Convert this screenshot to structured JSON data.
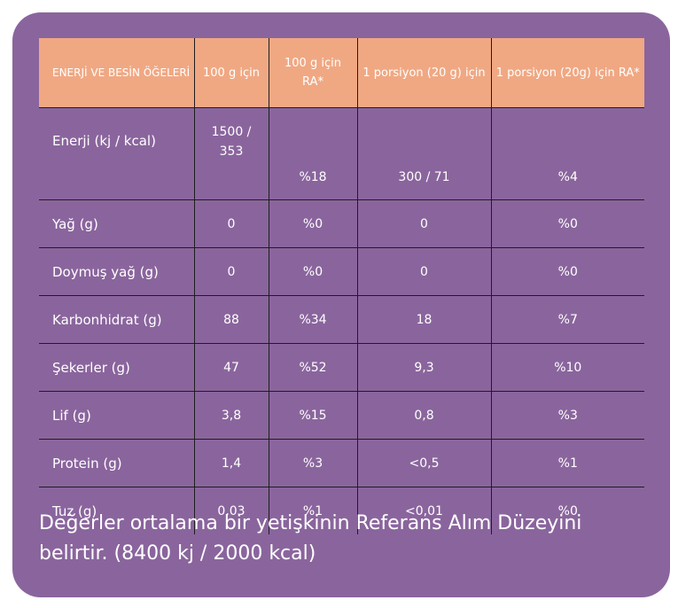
{
  "table": {
    "headers": [
      "ENERJİ VE BESİN ÖĞELERİ",
      "100 g için",
      "100 g için RA*",
      "1 porsiyon (20 g) için",
      "1 porsiyon (20g) için RA*"
    ],
    "rows": [
      [
        "Enerji (kj / kcal)",
        "1500 / 353",
        "%18",
        "300 / 71",
        "%4"
      ],
      [
        "Yağ (g)",
        "0",
        "%0",
        "0",
        "%0"
      ],
      [
        "Doymuş yağ (g)",
        "0",
        "%0",
        "0",
        "%0"
      ],
      [
        "Karbonhidrat (g)",
        "88",
        "%34",
        "18",
        "%7"
      ],
      [
        "Şekerler (g)",
        "47",
        "%52",
        "9,3",
        "%10"
      ],
      [
        "Lif (g)",
        "3,8",
        "%15",
        "0,8",
        "%3"
      ],
      [
        "Protein (g)",
        "1,4",
        "%3",
        "<0,5",
        "%1"
      ],
      [
        "Tuz (g)",
        "0,03",
        "%1",
        "<0,01",
        "%0"
      ]
    ]
  },
  "footnote": "Değerler ortalama bir yetişkinin Referans Alım Düzeyini belirtir. (8400 kj / 2000 kcal)",
  "colors": {
    "background": "#8a659d",
    "header": "#f0a883",
    "text": "#ffffff",
    "grid": "#1e1e1e"
  }
}
